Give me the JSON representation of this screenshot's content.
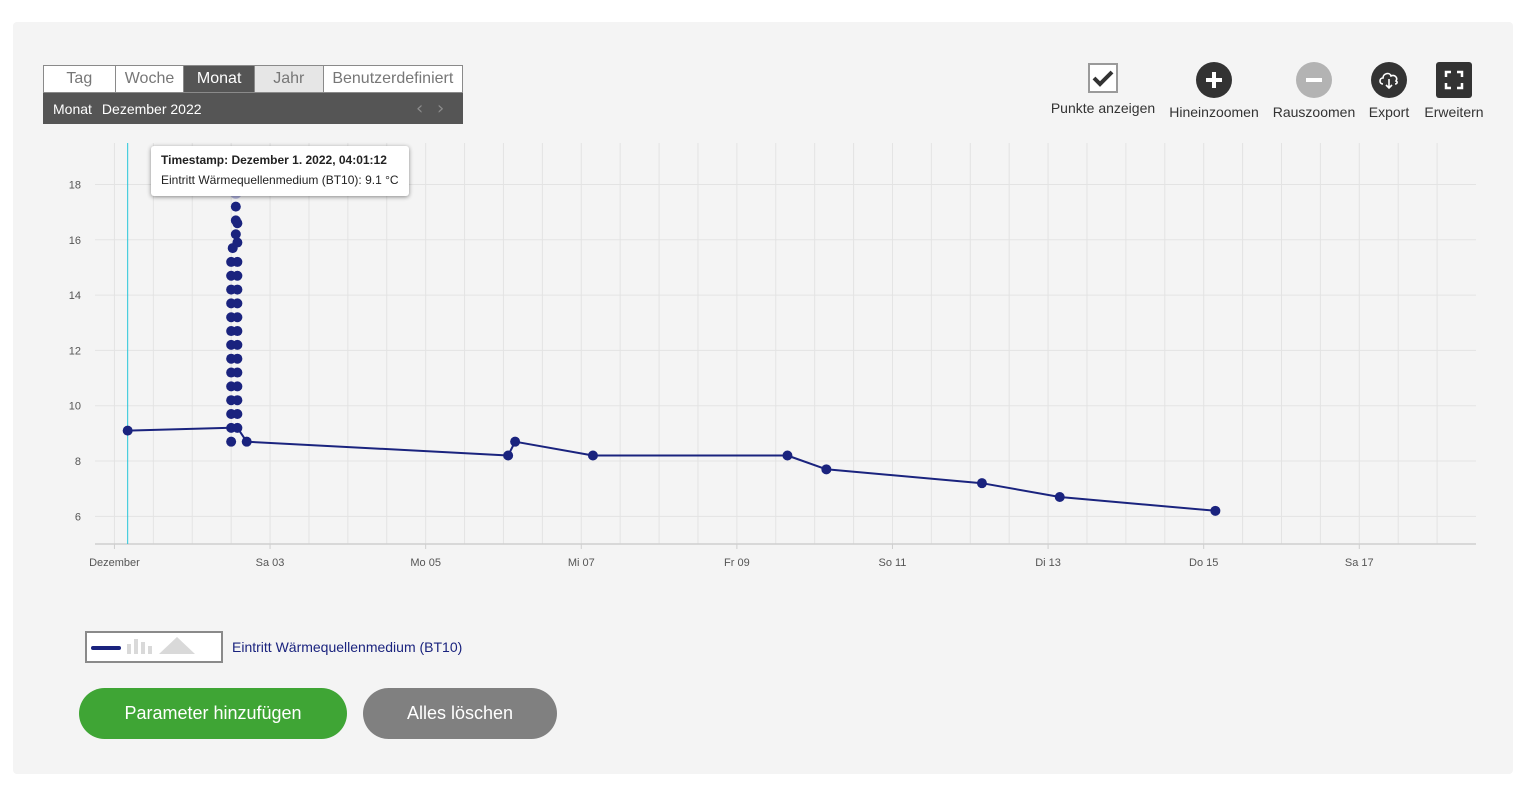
{
  "period": {
    "tabs": [
      "Tag",
      "Woche",
      "Monat",
      "Jahr",
      "Benutzerdefiniert"
    ],
    "active_tab": "Monat",
    "label": "Monat",
    "value": "Dezember 2022",
    "prev_icon": "chevron-left-icon",
    "next_icon": "chevron-right-icon"
  },
  "toolbar": {
    "points_label": "Punkte anzeigen",
    "points_checked": true,
    "zoom_in_label": "Hineinzoomen",
    "zoom_out_label": "Rauszoomen",
    "export_label": "Export",
    "expand_label": "Erweitern"
  },
  "tooltip": {
    "line1": "Timestamp: Dezember 1. 2022, 04:01:12",
    "line2": "Eintritt Wärmequellenmedium (BT10): 9.1 °C"
  },
  "legend": {
    "series_name": "Eintritt Wärmequellenmedium (BT10)"
  },
  "buttons": {
    "add_parameter": "Parameter hinzufügen",
    "clear_all": "Alles löschen"
  },
  "colors": {
    "series": "#1a237e",
    "crosshair": "#26c6da",
    "add_button": "#3fa535",
    "clear_button": "#808080",
    "grid": "#e3e3e3"
  },
  "chart_data": {
    "type": "line",
    "x_axis_ticks": [
      {
        "day": 0.5,
        "label": "Dezember"
      },
      {
        "day": 2.5,
        "label": "Sa 03"
      },
      {
        "day": 4.5,
        "label": "Mo 05"
      },
      {
        "day": 6.5,
        "label": "Mi 07"
      },
      {
        "day": 8.5,
        "label": "Fr 09"
      },
      {
        "day": 10.5,
        "label": "So 11"
      },
      {
        "day": 12.5,
        "label": "Di 13"
      },
      {
        "day": 14.5,
        "label": "Do 15"
      },
      {
        "day": 16.5,
        "label": "Sa 17"
      }
    ],
    "xlim": [
      0.25,
      18.0
    ],
    "ylim": [
      5,
      19.5
    ],
    "y_ticks": [
      6,
      8,
      10,
      12,
      14,
      16,
      18
    ],
    "grid": true,
    "series": [
      {
        "name": "Eintritt Wärmequellenmedium (BT10)",
        "line": [
          [
            0.67,
            9.1
          ],
          [
            2.0,
            9.2
          ],
          [
            2.08,
            9.2
          ],
          [
            2.2,
            8.7
          ],
          [
            5.56,
            8.2
          ],
          [
            5.65,
            8.7
          ],
          [
            6.65,
            8.2
          ],
          [
            9.15,
            8.2
          ],
          [
            9.65,
            7.7
          ],
          [
            11.65,
            7.2
          ],
          [
            12.65,
            6.7
          ],
          [
            14.65,
            6.2
          ]
        ],
        "points": [
          [
            0.67,
            9.1
          ],
          [
            2.0,
            8.7
          ],
          [
            2.0,
            9.2
          ],
          [
            2.08,
            9.2
          ],
          [
            2.2,
            8.7
          ],
          [
            2.0,
            9.7
          ],
          [
            2.08,
            9.7
          ],
          [
            2.0,
            10.2
          ],
          [
            2.08,
            10.2
          ],
          [
            2.0,
            10.7
          ],
          [
            2.08,
            10.7
          ],
          [
            2.0,
            11.2
          ],
          [
            2.08,
            11.2
          ],
          [
            2.0,
            11.7
          ],
          [
            2.08,
            11.7
          ],
          [
            2.0,
            12.2
          ],
          [
            2.08,
            12.2
          ],
          [
            2.0,
            12.7
          ],
          [
            2.08,
            12.7
          ],
          [
            2.0,
            13.2
          ],
          [
            2.08,
            13.2
          ],
          [
            2.0,
            13.7
          ],
          [
            2.08,
            13.7
          ],
          [
            2.0,
            14.2
          ],
          [
            2.08,
            14.2
          ],
          [
            2.0,
            14.7
          ],
          [
            2.08,
            14.7
          ],
          [
            2.0,
            15.2
          ],
          [
            2.08,
            15.2
          ],
          [
            2.02,
            15.7
          ],
          [
            2.08,
            15.9
          ],
          [
            2.06,
            16.2
          ],
          [
            2.08,
            16.6
          ],
          [
            2.06,
            16.7
          ],
          [
            2.06,
            17.2
          ],
          [
            5.56,
            8.2
          ],
          [
            5.65,
            8.7
          ],
          [
            6.65,
            8.2
          ],
          [
            9.15,
            8.2
          ],
          [
            9.65,
            7.7
          ],
          [
            11.65,
            7.2
          ],
          [
            12.65,
            6.7
          ],
          [
            14.65,
            6.2
          ]
        ],
        "highlight": [
          2.06,
          17.7
        ]
      }
    ],
    "crosshair_day": 0.67
  }
}
